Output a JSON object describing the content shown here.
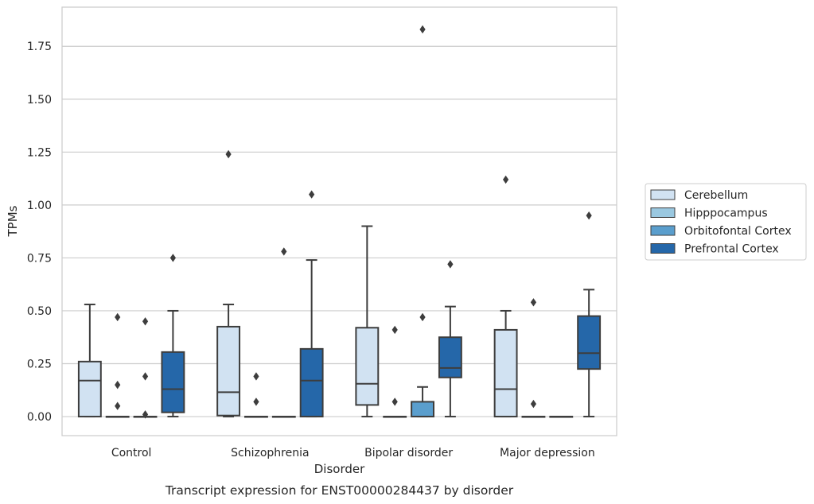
{
  "caption": "Transcript expression for ENST00000284437 by disorder",
  "chart_data": {
    "type": "box",
    "xlabel": "Disorder",
    "ylabel": "TPMs",
    "ylim": [
      -0.09,
      1.935
    ],
    "yticks": [
      0.0,
      0.25,
      0.5,
      0.75,
      1.0,
      1.25,
      1.5,
      1.75
    ],
    "ytick_labels": [
      "0.00",
      "0.25",
      "0.50",
      "0.75",
      "1.00",
      "1.25",
      "1.50",
      "1.75"
    ],
    "grid": "horizontal",
    "legend_position": "right",
    "categories": [
      "Control",
      "Schizophrenia",
      "Bipolar disorder",
      "Major depression"
    ],
    "series": [
      {
        "name": "Cerebellum",
        "color": "#d1e2f2",
        "boxes": [
          {
            "whisker_low": 0.0,
            "q1": 0.0,
            "median": 0.17,
            "q3": 0.26,
            "whisker_high": 0.53,
            "outliers": []
          },
          {
            "whisker_low": 0.0,
            "q1": 0.005,
            "median": 0.115,
            "q3": 0.425,
            "whisker_high": 0.53,
            "outliers": [
              1.24
            ]
          },
          {
            "whisker_low": 0.0,
            "q1": 0.055,
            "median": 0.155,
            "q3": 0.42,
            "whisker_high": 0.9,
            "outliers": []
          },
          {
            "whisker_low": 0.0,
            "q1": 0.0,
            "median": 0.13,
            "q3": 0.41,
            "whisker_high": 0.5,
            "outliers": [
              1.12
            ]
          }
        ]
      },
      {
        "name": "Hipppocampus",
        "color": "#9ac8e0",
        "boxes": [
          {
            "whisker_low": 0.0,
            "q1": 0.0,
            "median": 0.0,
            "q3": 0.0,
            "whisker_high": 0.0,
            "outliers": [
              0.05,
              0.15,
              0.47
            ]
          },
          {
            "whisker_low": 0.0,
            "q1": 0.0,
            "median": 0.0,
            "q3": 0.0,
            "whisker_high": 0.0,
            "outliers": [
              0.07,
              0.19
            ]
          },
          {
            "whisker_low": 0.0,
            "q1": 0.0,
            "median": 0.0,
            "q3": 0.0,
            "whisker_high": 0.0,
            "outliers": [
              0.07,
              0.41
            ]
          },
          {
            "whisker_low": 0.0,
            "q1": 0.0,
            "median": 0.0,
            "q3": 0.0,
            "whisker_high": 0.0,
            "outliers": [
              0.06,
              0.54
            ]
          }
        ]
      },
      {
        "name": "Orbitofontal Cortex",
        "color": "#5a9ecd",
        "boxes": [
          {
            "whisker_low": 0.0,
            "q1": 0.0,
            "median": 0.0,
            "q3": 0.0,
            "whisker_high": 0.0,
            "outliers": [
              0.01,
              0.19,
              0.45
            ]
          },
          {
            "whisker_low": 0.0,
            "q1": 0.0,
            "median": 0.0,
            "q3": 0.0,
            "whisker_high": 0.0,
            "outliers": [
              0.78
            ]
          },
          {
            "whisker_low": 0.0,
            "q1": 0.0,
            "median": 0.0,
            "q3": 0.07,
            "whisker_high": 0.14,
            "outliers": [
              0.47,
              1.83
            ]
          },
          {
            "whisker_low": 0.0,
            "q1": 0.0,
            "median": 0.0,
            "q3": 0.0,
            "whisker_high": 0.0,
            "outliers": []
          }
        ]
      },
      {
        "name": "Prefrontal Cortex",
        "color": "#2567a9",
        "boxes": [
          {
            "whisker_low": 0.0,
            "q1": 0.02,
            "median": 0.13,
            "q3": 0.305,
            "whisker_high": 0.5,
            "outliers": [
              0.75
            ]
          },
          {
            "whisker_low": 0.0,
            "q1": 0.0,
            "median": 0.17,
            "q3": 0.32,
            "whisker_high": 0.74,
            "outliers": [
              1.05
            ]
          },
          {
            "whisker_low": 0.0,
            "q1": 0.185,
            "median": 0.23,
            "q3": 0.375,
            "whisker_high": 0.52,
            "outliers": [
              0.72
            ]
          },
          {
            "whisker_low": 0.0,
            "q1": 0.225,
            "median": 0.3,
            "q3": 0.475,
            "whisker_high": 0.6,
            "outliers": [
              0.95
            ]
          }
        ]
      }
    ]
  }
}
